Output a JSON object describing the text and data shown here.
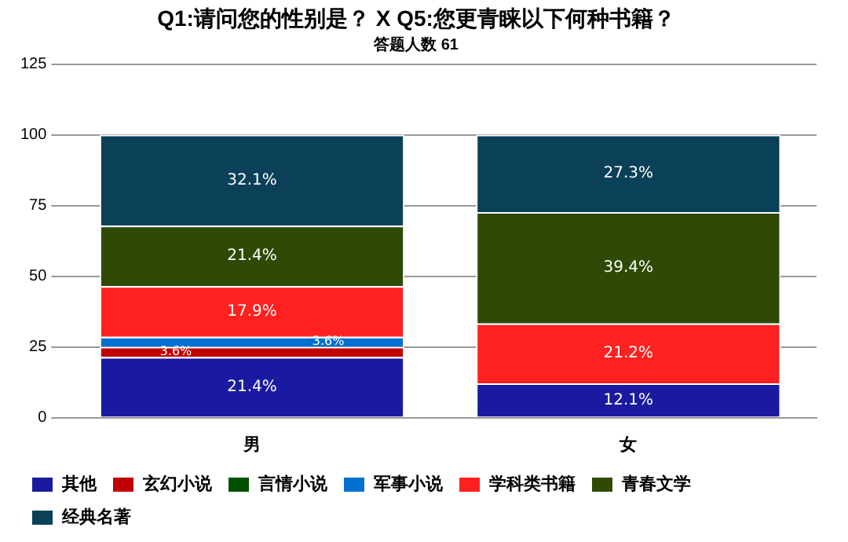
{
  "chart_data": {
    "type": "bar",
    "title": "Q1:请问您的性别是？ X Q5:您更青睐以下何种书籍？",
    "subtitle": "答题人数 61",
    "categories": [
      "男",
      "女"
    ],
    "stacked": true,
    "ylim": [
      0,
      125
    ],
    "yticks": [
      0,
      25,
      50,
      75,
      100,
      125
    ],
    "grid": "y",
    "legend": "bottom left",
    "series": [
      {
        "name": "其他",
        "color": "#1a1aa0",
        "values": [
          21.4,
          12.1
        ],
        "value_labels": [
          "21.4%",
          "12.1%"
        ]
      },
      {
        "name": "玄幻小说",
        "color": "#c00000",
        "values": [
          3.6,
          0
        ],
        "value_labels": [
          "3.6%",
          null
        ]
      },
      {
        "name": "言情小说",
        "color": "#005000",
        "values": [
          0,
          0
        ],
        "value_labels": [
          null,
          null
        ]
      },
      {
        "name": "军事小说",
        "color": "#0070d0",
        "values": [
          3.6,
          0
        ],
        "value_labels": [
          "3.6%",
          null
        ]
      },
      {
        "name": "学科类书籍",
        "color": "#ff2020",
        "values": [
          17.9,
          21.2
        ],
        "value_labels": [
          "17.9%",
          "21.2%"
        ]
      },
      {
        "name": "青春文学",
        "color": "#2e4a06",
        "values": [
          21.4,
          39.4
        ],
        "value_labels": [
          "21.4%",
          "39.4%"
        ]
      },
      {
        "name": "经典名著",
        "color": "#0a4058",
        "values": [
          32.1,
          27.3
        ],
        "value_labels": [
          "32.1%",
          "27.3%"
        ]
      }
    ]
  }
}
